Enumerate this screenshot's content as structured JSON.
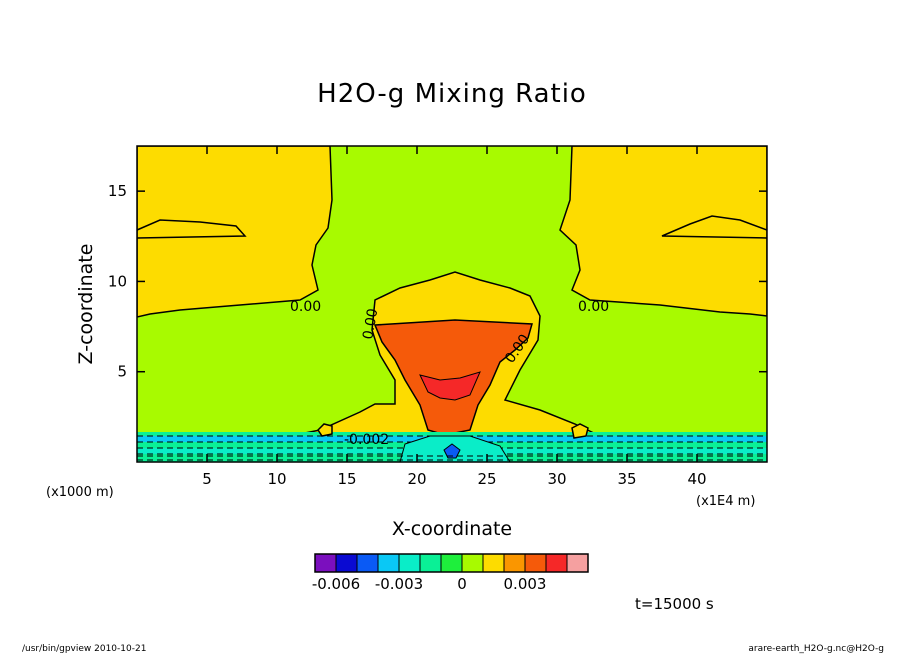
{
  "chart_data": {
    "type": "heatmap",
    "title": "H2O-g Mixing Ratio",
    "xlabel": "X-coordinate",
    "ylabel": "Z-coordinate",
    "x_unit_left": "(x1000 m)",
    "x_unit_right": "(x1E4 m)",
    "xlim": [
      0,
      45
    ],
    "ylim": [
      0,
      17.5
    ],
    "x_ticks": [
      "5",
      "10",
      "15",
      "20",
      "25",
      "30",
      "35",
      "40"
    ],
    "y_ticks": [
      "5",
      "10",
      "15"
    ],
    "contour_labels": [
      "0.00",
      "0.00",
      "0.00",
      "0.00",
      "-0.002"
    ],
    "time_label": "t=15000 s",
    "colorbar": {
      "colors": [
        "#7b0fbe",
        "#0a0ad2",
        "#0a5af5",
        "#0ac8f5",
        "#0aedc8",
        "#0af096",
        "#1eef3c",
        "#a8fa00",
        "#fddc00",
        "#fa9600",
        "#f55a0a",
        "#f52828",
        "#f5a0a0"
      ],
      "tick_labels": [
        "-0.006",
        "-0.003",
        "0",
        "0.003"
      ],
      "tick_values": [
        -0.006,
        -0.003,
        0,
        0.003
      ],
      "levels_step": 0.001
    },
    "regions": [
      {
        "name": "background",
        "color": "#a8fa00"
      },
      {
        "name": "upper-left",
        "color": "#fddc00"
      },
      {
        "name": "upper-right",
        "color": "#fddc00"
      },
      {
        "name": "cloud",
        "color": "#fddc00"
      },
      {
        "name": "core",
        "color": "#f55a0a"
      },
      {
        "name": "boundary-layer",
        "color": "#0af096"
      }
    ]
  },
  "footer": {
    "left": "/usr/bin/gpview   2010-10-21",
    "right": "arare-earth_H2O-g.nc@H2O-g"
  }
}
